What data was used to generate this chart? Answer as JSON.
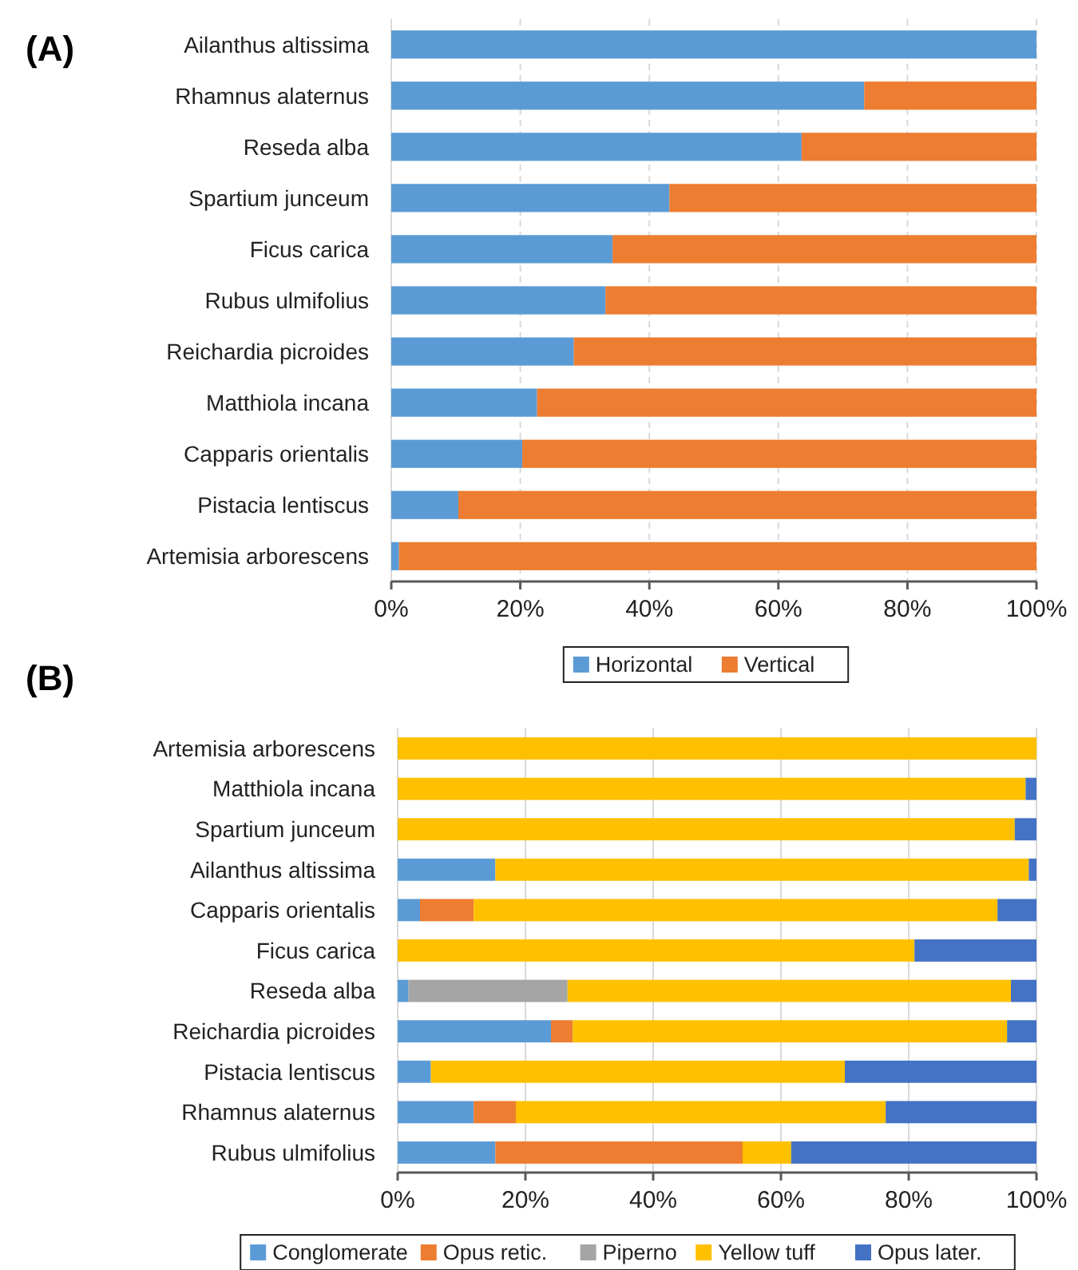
{
  "chart_data": [
    {
      "type": "bar",
      "title": "(A)",
      "orientation": "horizontal",
      "stacked": true,
      "categories": [
        "Ailanthus altissima",
        "Rhamnus alaternus",
        "Reseda alba",
        "Spartium junceum",
        "Ficus carica",
        "Rubus ulmifolius",
        "Reichardia picroides",
        "Matthiola incana",
        "Capparis orientalis",
        "Pistacia lentiscus",
        "Artemisia arborescens"
      ],
      "series": [
        {
          "name": "Horizontal",
          "color": "#5b9bd5",
          "values": [
            100,
            73.3,
            63.6,
            43.1,
            34.3,
            33.2,
            28.3,
            22.6,
            20.3,
            10.4,
            1.2
          ]
        },
        {
          "name": "Vertical",
          "color": "#ed7d31",
          "values": [
            0,
            26.7,
            36.4,
            56.9,
            65.7,
            66.8,
            71.7,
            77.4,
            79.7,
            89.6,
            98.8
          ]
        }
      ],
      "xlim": [
        0,
        100
      ],
      "xticks": [
        {
          "value": 0,
          "label": "0%"
        },
        {
          "value": 20,
          "label": "20%"
        },
        {
          "value": 40,
          "label": "40%"
        },
        {
          "value": 60,
          "label": "60%"
        },
        {
          "value": 80,
          "label": "80%"
        },
        {
          "value": 100,
          "label": "100%"
        }
      ],
      "grid": "x",
      "legend": "bottom"
    },
    {
      "type": "bar",
      "title": "(B)",
      "orientation": "horizontal",
      "stacked": true,
      "categories": [
        "Artemisia arborescens",
        "Matthiola incana",
        "Spartium junceum",
        "Ailanthus altissima",
        "Capparis orientalis",
        "Ficus carica",
        "Reseda alba",
        "Reichardia picroides",
        "Pistacia lentiscus",
        "Rhamnus alaternus",
        "Rubus ulmifolius"
      ],
      "series": [
        {
          "name": "Conglomerate",
          "color": "#5b9bd5",
          "values": [
            0,
            0,
            0,
            15.3,
            3.5,
            0,
            1.7,
            24,
            5.2,
            11.9,
            15.3
          ]
        },
        {
          "name": "Opus retic.",
          "color": "#ed7d31",
          "values": [
            0,
            0,
            0,
            0,
            8.4,
            0,
            0,
            3.4,
            0,
            6.6,
            38.7
          ]
        },
        {
          "name": "Piperno",
          "color": "#a5a5a5",
          "values": [
            0,
            0,
            0,
            0,
            0,
            0,
            24.9,
            0,
            0,
            0,
            0
          ]
        },
        {
          "name": "Yellow tuff",
          "color": "#ffc000",
          "values": [
            100,
            98.3,
            96.6,
            83.5,
            82,
            80.9,
            69.4,
            68,
            64.8,
            57.9,
            7.6
          ]
        },
        {
          "name": "Opus later.",
          "color": "#4472c4",
          "values": [
            0,
            1.7,
            3.4,
            1.2,
            6.1,
            19.1,
            4,
            4.6,
            30,
            23.6,
            38.4
          ]
        }
      ],
      "xlim": [
        0,
        100
      ],
      "xticks": [
        {
          "value": 0,
          "label": "0%"
        },
        {
          "value": 20,
          "label": "20%"
        },
        {
          "value": 40,
          "label": "40%"
        },
        {
          "value": 60,
          "label": "60%"
        },
        {
          "value": 80,
          "label": "80%"
        },
        {
          "value": 100,
          "label": "100%"
        }
      ],
      "grid": "x",
      "legend": "bottom"
    }
  ]
}
